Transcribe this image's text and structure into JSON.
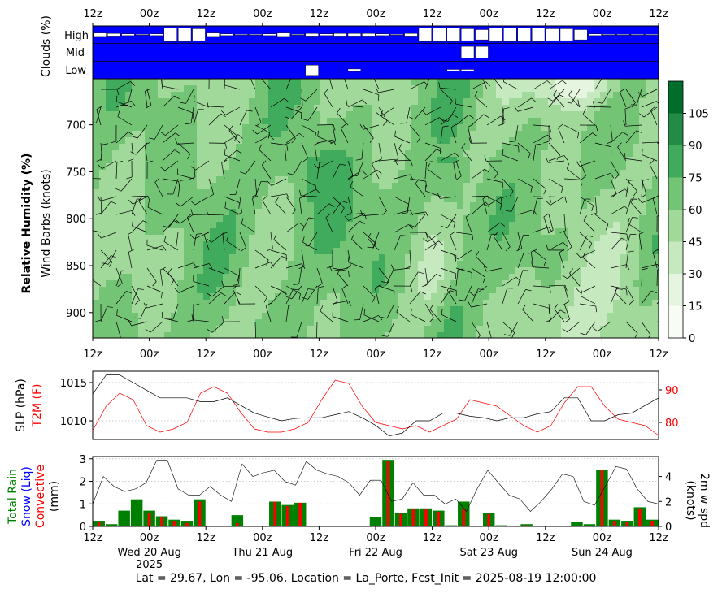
{
  "top_ticks": [
    "12z",
    "00z",
    "12z",
    "00z",
    "12z",
    "00z",
    "12z",
    "00z",
    "12z",
    "00z",
    "12z"
  ],
  "cloud_panel": {
    "ylabel": "Clouds (%)",
    "levels": [
      "High",
      "Mid",
      "Low"
    ],
    "high": [
      20,
      15,
      10,
      5,
      10,
      80,
      80,
      70,
      20,
      10,
      5,
      5,
      10,
      20,
      5,
      15,
      10,
      15,
      15,
      15,
      10,
      5,
      15,
      80,
      80,
      80,
      70,
      60,
      80,
      80,
      80,
      80,
      70,
      70,
      60,
      10,
      5,
      5,
      5,
      5,
      10,
      15,
      5
    ],
    "mid": [
      0,
      0,
      0,
      0,
      0,
      0,
      0,
      0,
      0,
      0,
      0,
      0,
      0,
      0,
      0,
      0,
      0,
      0,
      0,
      0,
      0,
      0,
      0,
      0,
      0,
      0,
      0,
      0,
      0,
      0,
      0,
      0,
      0,
      0,
      0,
      0,
      0,
      0,
      0,
      0,
      0,
      0,
      0,
      0,
      0,
      0,
      0,
      0,
      0,
      0,
      0,
      0,
      0,
      0,
      0,
      0,
      0,
      0,
      0,
      0,
      0,
      0,
      0,
      0,
      0,
      0,
      0,
      0,
      0,
      0,
      0,
      0,
      0,
      0,
      0,
      0,
      0,
      0,
      0,
      0,
      0,
      0,
      0,
      0,
      0
    ],
    "mid_blocks": [
      [
        26,
        70
      ],
      [
        27,
        70
      ]
    ],
    "low_blocks": [
      [
        15,
        60
      ],
      [
        18,
        15
      ],
      [
        25,
        5
      ],
      [
        26,
        5
      ]
    ]
  },
  "rh_panel": {
    "ylabel_bold": "Relative Humidity (%)",
    "ylabel_sub": "Wind Barbs (knots)",
    "yticks": [
      "700",
      "750",
      "800",
      "850",
      "900"
    ],
    "colorbar_ticks": [
      "0",
      "15",
      "30",
      "45",
      "60",
      "75",
      "90",
      "105"
    ],
    "colors": [
      "#f7fcf5",
      "#e5f5e0",
      "#c7e9c0",
      "#a1d99b",
      "#74c476",
      "#41ab5d",
      "#238b45",
      "#006d2c"
    ]
  },
  "slp_panel": {
    "ylabel_black": "SLP (hPa)",
    "ylabel_red": "T2M (F)",
    "left_ticks": [
      "1015",
      "1010"
    ],
    "right_ticks": [
      "90",
      "80"
    ],
    "slp": [
      1013.5,
      1016,
      1016,
      1015,
      1014,
      1013,
      1013,
      1013,
      1012.5,
      1012.5,
      1013,
      1012,
      1011,
      1010.5,
      1010,
      1010.3,
      1010.4,
      1010.4,
      1010.8,
      1011.2,
      1010.4,
      1009.4,
      1008,
      1008.4,
      1010,
      1010,
      1011,
      1011,
      1010.6,
      1010.4,
      1010,
      1010.4,
      1010.4,
      1010.9,
      1011.2,
      1013,
      1013,
      1010,
      1010,
      1010.8,
      1011,
      1012,
      1013
    ],
    "t2m": [
      77.5,
      85,
      89,
      87,
      79,
      77,
      78,
      80,
      89,
      91,
      89,
      83,
      78,
      77,
      77,
      78,
      80,
      87,
      93,
      92,
      85,
      80,
      79,
      78,
      79,
      77,
      79,
      81,
      87,
      86,
      85,
      82,
      79,
      77,
      79,
      86,
      91,
      91,
      85,
      81,
      80,
      79,
      76
    ]
  },
  "precip_panel": {
    "ylabel_green": "Total Rain",
    "ylabel_blue": "Snow (Liq)",
    "ylabel_red": "Convective",
    "ylabel_black": "(mm)",
    "ylabel_right_1": "2m w spd",
    "ylabel_right_2": "(knots)",
    "left_ticks": [
      "3",
      "2",
      "1",
      "0"
    ],
    "right_ticks": [
      "4",
      "2",
      "0"
    ],
    "total_rain": [
      0.25,
      0.1,
      0.7,
      1.2,
      0.7,
      0.45,
      0.3,
      0.25,
      1.2,
      0,
      0,
      0.5,
      0,
      0,
      1.1,
      0.95,
      1.05,
      0,
      0,
      0,
      0,
      0,
      0.4,
      2.95,
      0.6,
      0.8,
      0.8,
      0.7,
      0.05,
      1.1,
      0,
      0.6,
      0.05,
      0,
      0.1,
      0,
      0,
      0,
      0.2,
      0.1,
      2.5,
      0.3,
      0.25,
      0.85,
      0.3
    ],
    "convective": [
      0.2,
      0,
      0,
      0,
      0.6,
      0.4,
      0.25,
      0.15,
      1.1,
      0,
      0,
      0.15,
      0,
      0,
      1.1,
      0.9,
      1.05,
      0,
      0,
      0,
      0,
      0,
      0,
      2.9,
      0.55,
      0.75,
      0.75,
      0.65,
      0,
      0.8,
      0,
      0.55,
      0,
      0,
      0.05,
      0,
      0,
      0,
      0,
      0,
      2.5,
      0.25,
      0.2,
      0.8,
      0.25
    ],
    "wind": [
      1.8,
      4,
      3.2,
      2.8,
      3,
      3.5,
      5.3,
      5.3,
      3,
      2.5,
      2.5,
      3.2,
      2.5,
      2,
      5,
      4,
      4.3,
      4.5,
      3.6,
      3.3,
      5.2,
      4.5,
      4.2,
      4,
      3.5,
      2.5,
      3.7,
      3.7,
      2,
      2.2,
      3.5,
      2.5,
      2.5,
      1.8,
      2.2,
      1.2,
      3,
      4.5,
      3.5,
      2.5,
      2.2,
      1.2,
      2,
      3,
      4.2,
      4,
      2,
      1.7,
      3.2,
      4.8,
      4.6,
      3,
      2,
      1.8
    ]
  },
  "date_labels": [
    {
      "tick": 1,
      "line1": "Wed 20 Aug",
      "line2": "2025"
    },
    {
      "tick": 3,
      "line1": "Thu 21 Aug",
      "line2": ""
    },
    {
      "tick": 5,
      "line1": "Fri 22 Aug",
      "line2": ""
    },
    {
      "tick": 7,
      "line1": "Sat 23 Aug",
      "line2": ""
    },
    {
      "tick": 9,
      "line1": "Sun 24 Aug",
      "line2": ""
    }
  ],
  "footer": "Lat = 29.67, Lon = -95.06, Location = La_Porte, Fcst_Init = 2025-08-19 12:00:00"
}
